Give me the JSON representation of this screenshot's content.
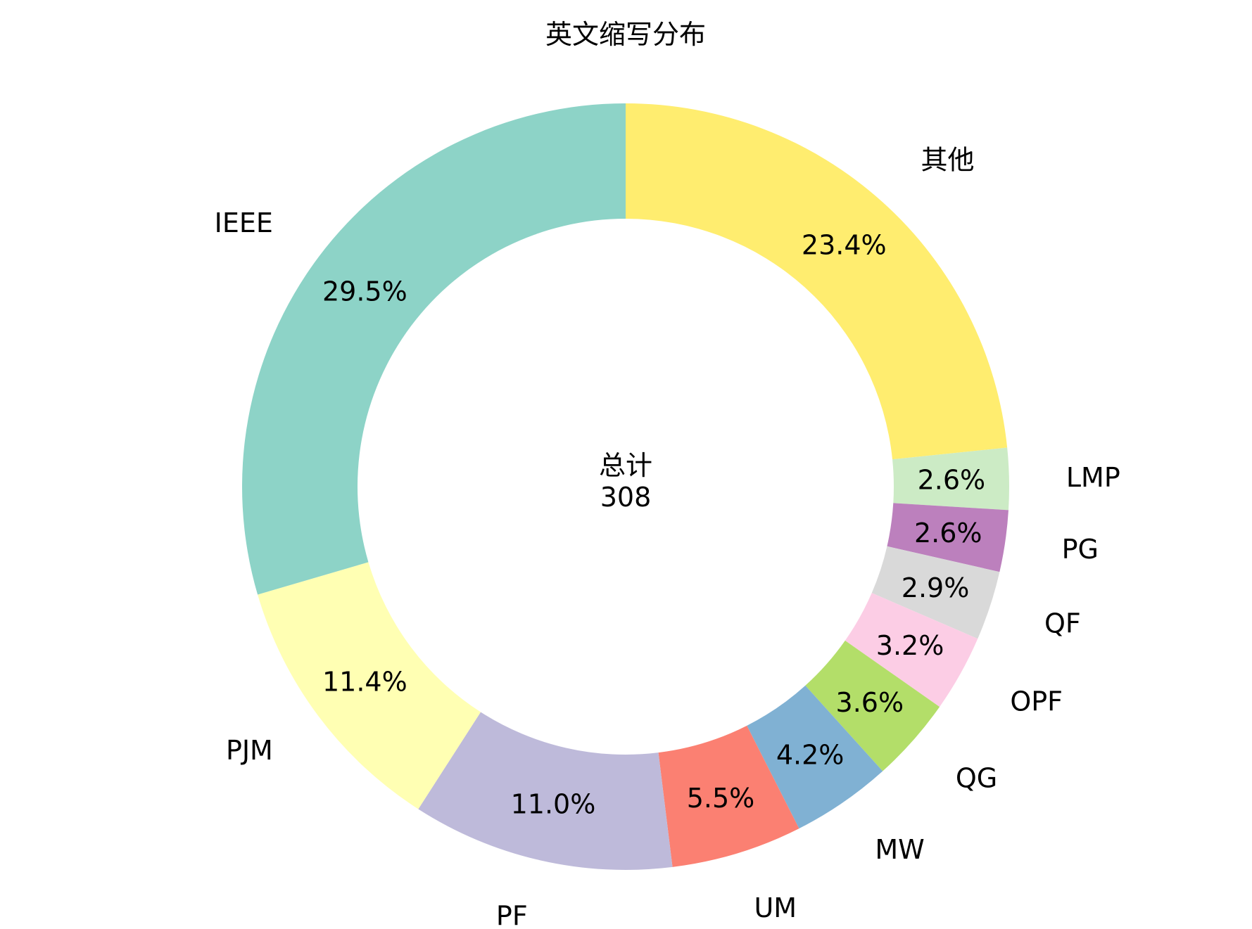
{
  "chart_data": {
    "type": "pie",
    "donut": true,
    "title": "英文缩写分布",
    "center_label": "总计",
    "center_value": "308",
    "start_angle_deg": 90,
    "direction": "clockwise",
    "slices": [
      {
        "label": "其他",
        "value": 72,
        "pct_label": "23.4%",
        "color": "#ffed6f"
      },
      {
        "label": "LMP",
        "value": 8,
        "pct_label": "2.6%",
        "color": "#ccebc5"
      },
      {
        "label": "PG",
        "value": 8,
        "pct_label": "2.6%",
        "color": "#bc80bd"
      },
      {
        "label": "QF",
        "value": 9,
        "pct_label": "2.9%",
        "color": "#d9d9d9"
      },
      {
        "label": "OPF",
        "value": 10,
        "pct_label": "3.2%",
        "color": "#fccde5"
      },
      {
        "label": "QG",
        "value": 11,
        "pct_label": "3.6%",
        "color": "#b3de69"
      },
      {
        "label": "MW",
        "value": 13,
        "pct_label": "4.2%",
        "color": "#80b1d3"
      },
      {
        "label": "UM",
        "value": 17,
        "pct_label": "5.5%",
        "color": "#fb8072"
      },
      {
        "label": "PF",
        "value": 34,
        "pct_label": "11.0%",
        "color": "#bebada"
      },
      {
        "label": "PJM",
        "value": 35,
        "pct_label": "11.4%",
        "color": "#ffffb3"
      },
      {
        "label": "IEEE",
        "value": 91,
        "pct_label": "29.5%",
        "color": "#8dd3c7"
      }
    ]
  }
}
